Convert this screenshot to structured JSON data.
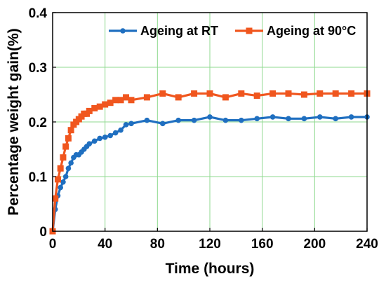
{
  "chart_data": {
    "type": "line",
    "title": "",
    "xlabel": "Time (hours)",
    "ylabel": "Percentage weight gain(%)",
    "xlim": [
      0,
      240
    ],
    "ylim": [
      0,
      0.4
    ],
    "xticks": [
      "0",
      "40",
      "80",
      "120",
      "160",
      "200",
      "240"
    ],
    "yticks": [
      "0",
      "0.1",
      "0.2",
      "0.3",
      "0.4"
    ],
    "grid": true,
    "legend_position": "top-right",
    "series": [
      {
        "name": "Ageing at RT",
        "color": "#1f6fc0",
        "marker": "circle",
        "x": [
          0,
          2,
          4,
          6,
          8,
          10,
          12,
          14,
          16,
          18,
          20,
          22,
          24,
          26,
          28,
          32,
          36,
          40,
          44,
          48,
          52,
          56,
          60,
          72,
          84,
          96,
          108,
          120,
          132,
          144,
          156,
          168,
          180,
          192,
          204,
          216,
          228,
          240
        ],
        "y": [
          0,
          0.04,
          0.065,
          0.08,
          0.09,
          0.1,
          0.115,
          0.125,
          0.135,
          0.14,
          0.14,
          0.145,
          0.15,
          0.155,
          0.16,
          0.165,
          0.17,
          0.172,
          0.175,
          0.18,
          0.185,
          0.195,
          0.197,
          0.203,
          0.197,
          0.203,
          0.203,
          0.209,
          0.203,
          0.203,
          0.206,
          0.209,
          0.206,
          0.206,
          0.209,
          0.206,
          0.209,
          0.209
        ]
      },
      {
        "name": "Ageing at 90°C",
        "color": "#f0561e",
        "marker": "square",
        "x": [
          0,
          2,
          4,
          6,
          8,
          10,
          12,
          14,
          16,
          18,
          20,
          22,
          24,
          26,
          28,
          32,
          36,
          40,
          44,
          48,
          52,
          56,
          60,
          72,
          84,
          96,
          108,
          120,
          132,
          144,
          156,
          168,
          180,
          192,
          204,
          216,
          228,
          240
        ],
        "y": [
          0,
          0.06,
          0.095,
          0.115,
          0.135,
          0.155,
          0.17,
          0.185,
          0.195,
          0.2,
          0.205,
          0.21,
          0.215,
          0.215,
          0.22,
          0.225,
          0.228,
          0.232,
          0.235,
          0.24,
          0.24,
          0.245,
          0.24,
          0.245,
          0.252,
          0.245,
          0.252,
          0.252,
          0.245,
          0.252,
          0.248,
          0.252,
          0.252,
          0.25,
          0.252,
          0.252,
          0.252,
          0.252
        ]
      }
    ]
  }
}
